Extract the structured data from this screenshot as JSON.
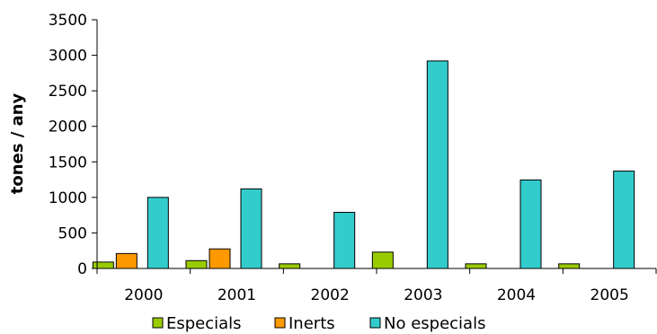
{
  "chart_data": {
    "type": "bar",
    "title": "",
    "xlabel": "",
    "ylabel": "tones / any",
    "categories": [
      "2000",
      "2001",
      "2002",
      "2003",
      "2004",
      "2005"
    ],
    "ylim": [
      0,
      3500
    ],
    "yticks": [
      0,
      500,
      1000,
      1500,
      2000,
      2500,
      3000,
      3500
    ],
    "grid": false,
    "legend_position": "bottom",
    "series": [
      {
        "name": "Especials",
        "color": "#99cc00",
        "values": [
          90,
          110,
          65,
          230,
          65,
          65
        ]
      },
      {
        "name": "Inerts",
        "color": "#ff9900",
        "values": [
          210,
          275,
          0,
          0,
          0,
          0
        ]
      },
      {
        "name": "No especials",
        "color": "#33cccc",
        "values": [
          1000,
          1120,
          790,
          2920,
          1245,
          1370
        ]
      }
    ]
  }
}
